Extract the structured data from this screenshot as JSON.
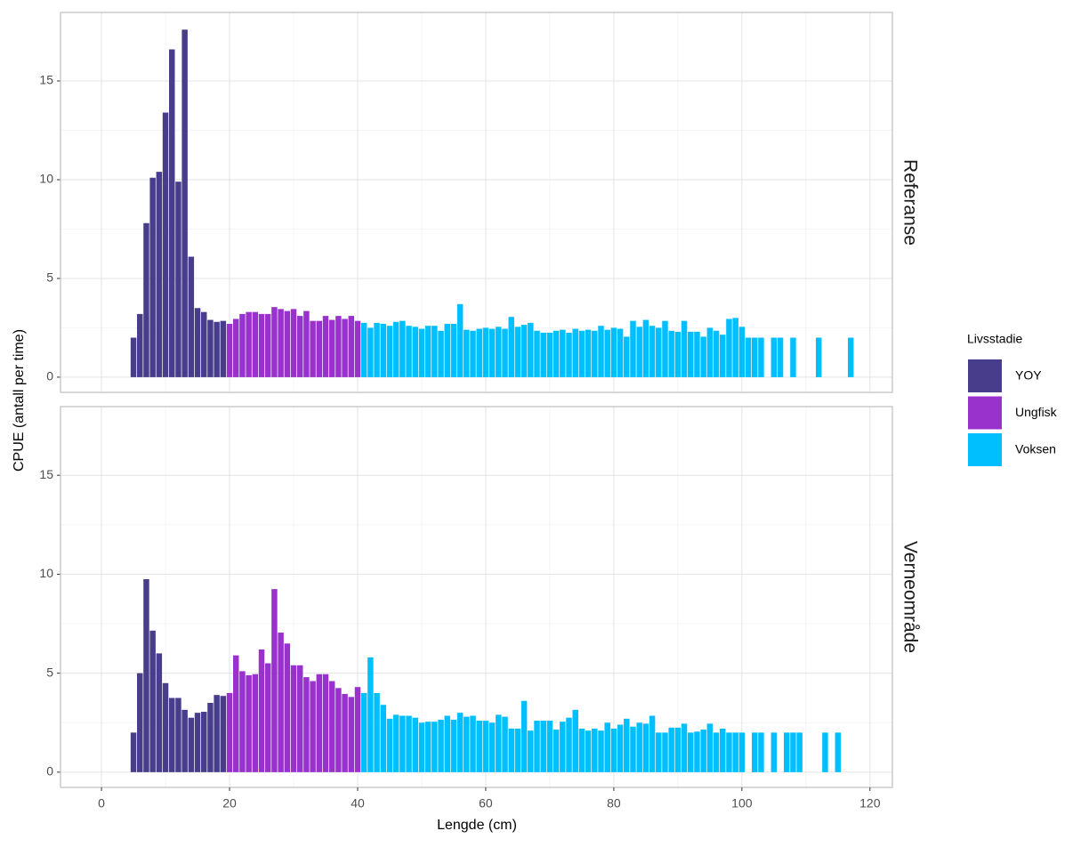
{
  "chart_data": {
    "type": "bar",
    "xlabel": "Lengde (cm)",
    "ylabel": "CPUE (antall per time)",
    "legend_title": "Livsstadie",
    "xlim": [
      -6.4,
      123.5
    ],
    "ylim": [
      -0.77,
      18.47
    ],
    "xticks": [
      0,
      20,
      40,
      60,
      80,
      100,
      120
    ],
    "yticks": [
      0,
      5,
      10,
      15
    ],
    "grid": true,
    "series": [
      {
        "name": "YOY",
        "color": "#483d8b"
      },
      {
        "name": "Ungfisk",
        "color": "#9932cc"
      },
      {
        "name": "Voksen",
        "color": "#00bfff"
      }
    ],
    "panels": [
      {
        "label": "Referanse",
        "series": [
          {
            "x": [
              5,
              6,
              7,
              8,
              9,
              10,
              11,
              12,
              13,
              14,
              15,
              16,
              17,
              18,
              19
            ],
            "values": [
              2.0,
              3.2,
              7.8,
              10.1,
              10.4,
              13.4,
              16.6,
              9.9,
              17.6,
              6.1,
              3.5,
              3.3,
              2.9,
              2.8,
              2.85
            ]
          },
          {
            "x": [
              20,
              21,
              22,
              23,
              24,
              25,
              26,
              27,
              28,
              29,
              30,
              31,
              32,
              33,
              34,
              35,
              36,
              37,
              38,
              39,
              40
            ],
            "values": [
              2.7,
              2.95,
              3.2,
              3.3,
              3.3,
              3.2,
              3.2,
              3.55,
              3.45,
              3.35,
              3.45,
              3.1,
              3.35,
              2.85,
              2.85,
              3.1,
              2.9,
              3.1,
              2.95,
              3.1,
              2.85
            ]
          },
          {
            "x": [
              41,
              42,
              43,
              44,
              45,
              46,
              47,
              48,
              49,
              50,
              51,
              52,
              53,
              54,
              55,
              56,
              57,
              58,
              59,
              60,
              61,
              62,
              63,
              64,
              65,
              66,
              67,
              68,
              69,
              70,
              71,
              72,
              73,
              74,
              75,
              76,
              77,
              78,
              79,
              80,
              81,
              82,
              83,
              84,
              85,
              86,
              87,
              88,
              89,
              90,
              91,
              92,
              93,
              94,
              95,
              96,
              97,
              98,
              99,
              100,
              101,
              102,
              103,
              105,
              106,
              108,
              112,
              117
            ],
            "values": [
              2.75,
              2.5,
              2.75,
              2.7,
              2.6,
              2.8,
              2.85,
              2.6,
              2.55,
              2.45,
              2.6,
              2.6,
              2.35,
              2.7,
              2.7,
              3.7,
              2.4,
              2.35,
              2.45,
              2.5,
              2.45,
              2.55,
              2.45,
              3.05,
              2.55,
              2.65,
              2.75,
              2.35,
              2.25,
              2.25,
              2.35,
              2.4,
              2.25,
              2.45,
              2.35,
              2.4,
              2.35,
              2.6,
              2.4,
              2.5,
              2.45,
              2.05,
              2.85,
              2.55,
              2.9,
              2.6,
              2.5,
              2.85,
              2.35,
              2.3,
              2.85,
              2.3,
              2.3,
              2.05,
              2.5,
              2.35,
              2.15,
              2.95,
              3.0,
              2.55,
              2.0,
              2.0,
              2.0,
              2.0,
              2.0,
              2.0,
              2.0,
              2.0
            ]
          }
        ]
      },
      {
        "label": "Verneområde",
        "series": [
          {
            "x": [
              5,
              6,
              7,
              8,
              9,
              10,
              11,
              12,
              13,
              14,
              15,
              16,
              17,
              18,
              19
            ],
            "values": [
              2.0,
              5.0,
              9.75,
              7.15,
              6.0,
              4.5,
              3.75,
              3.75,
              3.15,
              2.75,
              3.0,
              3.05,
              3.5,
              3.9,
              3.85
            ]
          },
          {
            "x": [
              20,
              21,
              22,
              23,
              24,
              25,
              26,
              27,
              28,
              29,
              30,
              31,
              32,
              33,
              34,
              35,
              36,
              37,
              38,
              39,
              40
            ],
            "values": [
              4.0,
              5.9,
              5.1,
              4.9,
              4.95,
              6.2,
              5.5,
              9.25,
              7.05,
              6.5,
              5.4,
              5.4,
              4.8,
              4.6,
              4.95,
              4.95,
              4.6,
              4.25,
              3.95,
              3.8,
              4.3
            ]
          },
          {
            "x": [
              41,
              42,
              43,
              44,
              45,
              46,
              47,
              48,
              49,
              50,
              51,
              52,
              53,
              54,
              55,
              56,
              57,
              58,
              59,
              60,
              61,
              62,
              63,
              64,
              65,
              66,
              67,
              68,
              69,
              70,
              71,
              72,
              73,
              74,
              75,
              76,
              77,
              78,
              79,
              80,
              81,
              82,
              83,
              84,
              85,
              86,
              87,
              88,
              89,
              90,
              91,
              92,
              93,
              94,
              95,
              96,
              97,
              98,
              99,
              100,
              102,
              103,
              105,
              107,
              108,
              109,
              113,
              115
            ],
            "values": [
              4.0,
              5.8,
              4.0,
              3.4,
              2.7,
              2.9,
              2.85,
              2.85,
              2.75,
              2.5,
              2.55,
              2.55,
              2.65,
              2.85,
              2.65,
              3.0,
              2.8,
              2.85,
              2.6,
              2.6,
              2.5,
              2.9,
              2.8,
              2.2,
              2.2,
              3.6,
              2.1,
              2.6,
              2.6,
              2.6,
              2.15,
              2.55,
              2.75,
              3.15,
              2.2,
              2.1,
              2.2,
              2.1,
              2.5,
              2.2,
              2.4,
              2.7,
              2.3,
              2.5,
              2.45,
              2.85,
              2.0,
              2.0,
              2.25,
              2.25,
              2.45,
              2.0,
              2.05,
              2.15,
              2.45,
              2.0,
              2.2,
              2.0,
              2.0,
              2.0,
              2.0,
              2.0,
              2.0,
              2.0,
              2.0,
              2.0,
              2.0,
              2.0
            ]
          }
        ]
      }
    ]
  }
}
